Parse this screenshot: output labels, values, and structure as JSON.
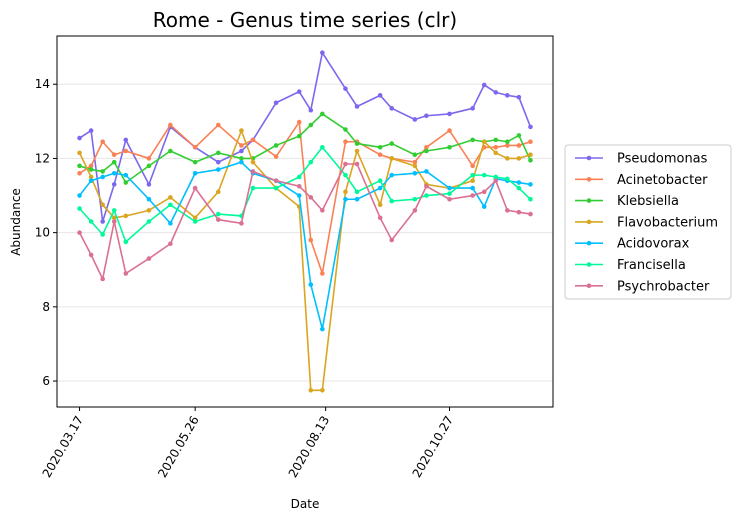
{
  "chart_data": {
    "type": "line",
    "title": "Rome - Genus time series (clr)",
    "xlabel": "Date",
    "ylabel": "Abundance",
    "x_tick_labels": [
      "2020.03.17",
      "2020.05.26",
      "2020.08.13",
      "2020.10.27"
    ],
    "y_ticks": [
      "6",
      "8",
      "10",
      "12",
      "14"
    ],
    "ylim": [
      5.3,
      15.3
    ],
    "grid": "horizontal",
    "legend_position": "right",
    "x": [
      "2020-03-17",
      "2020-03-24",
      "2020-03-31",
      "2020-04-07",
      "2020-04-14",
      "2020-04-28",
      "2020-05-11",
      "2020-05-26",
      "2020-06-09",
      "2020-06-23",
      "2020-06-30",
      "2020-07-14",
      "2020-07-28",
      "2020-08-04",
      "2020-08-11",
      "2020-08-25",
      "2020-09-01",
      "2020-09-15",
      "2020-09-22",
      "2020-10-06",
      "2020-10-13",
      "2020-10-27",
      "2020-11-10",
      "2020-11-17",
      "2020-11-24",
      "2020-12-01",
      "2020-12-08",
      "2020-12-15"
    ],
    "series": [
      {
        "name": "Pseudomonas",
        "color": "#7b68ee",
        "values": [
          12.55,
          12.75,
          10.3,
          11.3,
          12.5,
          11.3,
          12.85,
          12.3,
          11.9,
          12.2,
          12.5,
          13.5,
          13.8,
          13.3,
          14.85,
          13.88,
          13.4,
          13.7,
          13.35,
          13.05,
          13.15,
          13.2,
          13.35,
          13.98,
          13.78,
          13.7,
          13.65,
          12.85
        ]
      },
      {
        "name": "Acinetobacter",
        "color": "#fa8155",
        "values": [
          11.6,
          11.8,
          12.45,
          12.1,
          12.2,
          12.0,
          12.9,
          12.3,
          12.9,
          12.35,
          12.5,
          12.05,
          12.98,
          9.8,
          8.9,
          12.45,
          12.45,
          12.1,
          12.0,
          11.9,
          12.3,
          12.75,
          11.8,
          12.3,
          12.3,
          12.35,
          12.35,
          12.45
        ]
      },
      {
        "name": "Klebsiella",
        "color": "#32cd32",
        "values": [
          11.8,
          11.7,
          11.65,
          11.9,
          11.35,
          11.8,
          12.2,
          11.9,
          12.15,
          12.0,
          12.0,
          12.35,
          12.6,
          12.9,
          13.2,
          12.78,
          12.4,
          12.3,
          12.4,
          12.1,
          12.2,
          12.3,
          12.5,
          12.45,
          12.5,
          12.45,
          12.62,
          11.95
        ]
      },
      {
        "name": "Flavobacterium",
        "color": "#daa520",
        "values": [
          12.15,
          11.5,
          10.75,
          10.4,
          10.45,
          10.6,
          10.95,
          10.4,
          11.1,
          12.75,
          11.9,
          11.2,
          10.7,
          5.75,
          5.75,
          11.1,
          12.2,
          10.75,
          12.0,
          11.8,
          11.3,
          11.2,
          11.4,
          12.45,
          12.15,
          12.0,
          12.0,
          12.1
        ]
      },
      {
        "name": "Acidovorax",
        "color": "#00bfff",
        "values": [
          11.0,
          11.4,
          11.5,
          11.6,
          11.55,
          10.9,
          10.25,
          11.6,
          11.7,
          11.9,
          11.6,
          11.4,
          11.0,
          8.6,
          7.4,
          10.9,
          10.9,
          11.2,
          11.55,
          11.6,
          11.65,
          11.2,
          11.2,
          10.7,
          11.45,
          11.4,
          11.35,
          11.3
        ]
      },
      {
        "name": "Francisella",
        "color": "#00fa9a",
        "values": [
          10.65,
          10.3,
          9.95,
          10.6,
          9.75,
          10.3,
          10.75,
          10.3,
          10.5,
          10.45,
          11.2,
          11.2,
          11.5,
          11.9,
          12.3,
          11.55,
          11.1,
          11.4,
          10.85,
          10.9,
          11.0,
          11.05,
          11.55,
          11.55,
          11.5,
          11.45,
          11.2,
          10.9
        ]
      },
      {
        "name": "Psychrobacter",
        "color": "#db7093",
        "values": [
          10.0,
          9.4,
          8.75,
          10.3,
          8.9,
          9.3,
          9.7,
          11.2,
          10.35,
          10.25,
          11.65,
          11.4,
          11.25,
          10.95,
          10.6,
          11.85,
          11.85,
          10.4,
          9.8,
          10.6,
          11.25,
          10.9,
          11.0,
          11.1,
          11.4,
          10.6,
          10.55,
          10.5
        ]
      }
    ]
  }
}
